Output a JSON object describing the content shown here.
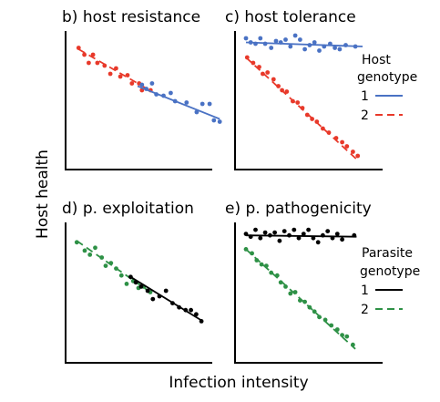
{
  "figure": {
    "xlabel": "Infection intensity",
    "ylabel": "Host health"
  },
  "colors": {
    "blue": "#4a72c4",
    "red": "#e8392a",
    "green": "#2e9146",
    "black": "#000000",
    "axis": "#000000"
  },
  "legends": {
    "host": {
      "title_line1": "Host",
      "title_line2": "genotype",
      "item1": "1",
      "item2": "2"
    },
    "parasite": {
      "title_line1": "Parasite",
      "title_line2": "genotype",
      "item1": "1",
      "item2": "2"
    }
  },
  "chart_data": [
    {
      "id": "b",
      "type": "scatter",
      "title": "b) host resistance",
      "xlim": [
        0,
        10
      ],
      "ylim": [
        0,
        10
      ],
      "series": [
        {
          "color_key": "red",
          "dashed": true,
          "points": [
            [
              0.4,
              8.9
            ],
            [
              0.8,
              8.4
            ],
            [
              1.1,
              7.8
            ],
            [
              1.4,
              8.4
            ],
            [
              1.7,
              7.8
            ],
            [
              2.2,
              7.6
            ],
            [
              2.6,
              7.0
            ],
            [
              3.0,
              7.4
            ],
            [
              3.3,
              6.8
            ],
            [
              3.8,
              6.9
            ],
            [
              4.1,
              6.3
            ],
            [
              4.6,
              6.3
            ],
            [
              4.8,
              5.8
            ],
            [
              5.4,
              5.8
            ]
          ],
          "fit": [
            [
              0.4,
              8.8
            ],
            [
              5.5,
              5.7
            ]
          ]
        },
        {
          "color_key": "blue",
          "dashed": false,
          "points": [
            [
              4.8,
              6.2
            ],
            [
              5.1,
              5.9
            ],
            [
              5.5,
              6.3
            ],
            [
              5.8,
              5.5
            ],
            [
              6.3,
              5.4
            ],
            [
              6.8,
              5.6
            ],
            [
              7.1,
              5.0
            ],
            [
              7.9,
              4.9
            ],
            [
              8.6,
              4.2
            ],
            [
              9.0,
              4.8
            ],
            [
              9.5,
              4.8
            ],
            [
              9.8,
              3.6
            ],
            [
              10.2,
              3.5
            ]
          ],
          "fit": [
            [
              4.5,
              6.1
            ],
            [
              10.2,
              3.7
            ]
          ]
        }
      ]
    },
    {
      "id": "c",
      "type": "scatter",
      "title": "c) host tolerance",
      "xlim": [
        0,
        10
      ],
      "ylim": [
        0,
        10
      ],
      "series": [
        {
          "name": "1",
          "color_key": "blue",
          "dashed": false,
          "points": [
            [
              0.3,
              9.6
            ],
            [
              0.7,
              9.3
            ],
            [
              1.1,
              9.2
            ],
            [
              1.5,
              9.6
            ],
            [
              1.9,
              9.2
            ],
            [
              2.4,
              8.9
            ],
            [
              2.8,
              9.4
            ],
            [
              3.2,
              9.3
            ],
            [
              3.6,
              9.5
            ],
            [
              4.0,
              9.0
            ],
            [
              4.4,
              9.8
            ],
            [
              4.8,
              9.5
            ],
            [
              5.2,
              8.8
            ],
            [
              5.6,
              9.1
            ],
            [
              6.0,
              9.3
            ],
            [
              6.4,
              8.7
            ],
            [
              6.8,
              9.0
            ],
            [
              7.3,
              9.2
            ],
            [
              7.7,
              8.9
            ],
            [
              8.1,
              8.8
            ],
            [
              8.6,
              9.1
            ],
            [
              9.4,
              9.0
            ]
          ],
          "fit": [
            [
              0.3,
              9.3
            ],
            [
              10.0,
              9.0
            ]
          ]
        },
        {
          "name": "2",
          "color_key": "red",
          "dashed": true,
          "points": [
            [
              0.4,
              8.2
            ],
            [
              0.9,
              7.8
            ],
            [
              1.4,
              7.5
            ],
            [
              1.7,
              7.0
            ],
            [
              2.1,
              7.1
            ],
            [
              2.6,
              6.6
            ],
            [
              3.0,
              6.1
            ],
            [
              3.3,
              5.8
            ],
            [
              3.7,
              5.7
            ],
            [
              4.2,
              5.0
            ],
            [
              4.6,
              4.9
            ],
            [
              5.0,
              4.5
            ],
            [
              5.4,
              4.0
            ],
            [
              5.8,
              3.7
            ],
            [
              6.2,
              3.5
            ],
            [
              6.7,
              3.0
            ],
            [
              7.2,
              2.7
            ],
            [
              7.8,
              2.3
            ],
            [
              8.3,
              2.0
            ],
            [
              8.7,
              1.7
            ],
            [
              9.2,
              1.3
            ],
            [
              9.6,
              1.0
            ]
          ],
          "fit": [
            [
              0.3,
              8.2
            ],
            [
              9.7,
              0.6
            ]
          ]
        }
      ]
    },
    {
      "id": "d",
      "type": "scatter",
      "title": "d) p. exploitation",
      "xlim": [
        0,
        10
      ],
      "ylim": [
        0,
        10
      ],
      "series": [
        {
          "color_key": "green",
          "dashed": true,
          "points": [
            [
              0.3,
              8.7
            ],
            [
              0.9,
              8.1
            ],
            [
              1.3,
              7.8
            ],
            [
              1.7,
              8.3
            ],
            [
              2.2,
              7.6
            ],
            [
              2.5,
              7.0
            ],
            [
              2.9,
              7.2
            ],
            [
              3.3,
              6.8
            ],
            [
              3.7,
              6.3
            ],
            [
              4.1,
              5.7
            ],
            [
              4.6,
              5.9
            ],
            [
              5.0,
              5.4
            ],
            [
              5.4,
              5.5
            ],
            [
              5.9,
              5.1
            ]
          ],
          "fit": [
            [
              0.3,
              8.8
            ],
            [
              5.9,
              5.1
            ]
          ]
        },
        {
          "color_key": "black",
          "dashed": false,
          "points": [
            [
              4.4,
              6.2
            ],
            [
              4.8,
              5.8
            ],
            [
              5.2,
              5.5
            ],
            [
              5.7,
              5.2
            ],
            [
              6.1,
              4.6
            ],
            [
              6.6,
              4.8
            ],
            [
              7.1,
              5.2
            ],
            [
              7.6,
              4.3
            ],
            [
              8.1,
              4.0
            ],
            [
              8.6,
              3.8
            ],
            [
              9.0,
              3.8
            ],
            [
              9.4,
              3.5
            ],
            [
              9.8,
              3.0
            ]
          ],
          "fit": [
            [
              4.4,
              6.2
            ],
            [
              9.9,
              3.0
            ]
          ]
        }
      ]
    },
    {
      "id": "e",
      "type": "scatter",
      "title": "e) p. pathogenicity",
      "xlim": [
        0,
        10
      ],
      "ylim": [
        0,
        10
      ],
      "series": [
        {
          "name": "1",
          "color_key": "black",
          "dashed": false,
          "points": [
            [
              0.3,
              9.3
            ],
            [
              0.7,
              9.1
            ],
            [
              1.1,
              9.6
            ],
            [
              1.5,
              9.0
            ],
            [
              1.9,
              9.4
            ],
            [
              2.3,
              9.2
            ],
            [
              2.7,
              9.4
            ],
            [
              3.1,
              8.8
            ],
            [
              3.5,
              9.5
            ],
            [
              3.9,
              9.2
            ],
            [
              4.3,
              9.6
            ],
            [
              4.7,
              9.0
            ],
            [
              5.1,
              9.3
            ],
            [
              5.5,
              9.6
            ],
            [
              5.9,
              9.0
            ],
            [
              6.3,
              8.7
            ],
            [
              6.7,
              9.2
            ],
            [
              7.1,
              9.5
            ],
            [
              7.5,
              9.0
            ],
            [
              7.9,
              9.3
            ],
            [
              8.3,
              8.9
            ],
            [
              9.3,
              9.2
            ]
          ],
          "fit": [
            [
              0.3,
              9.2
            ],
            [
              9.5,
              9.1
            ]
          ]
        },
        {
          "name": "2",
          "color_key": "green",
          "dashed": true,
          "points": [
            [
              0.3,
              8.2
            ],
            [
              0.8,
              7.9
            ],
            [
              1.2,
              7.4
            ],
            [
              1.6,
              7.1
            ],
            [
              2.0,
              7.0
            ],
            [
              2.4,
              6.5
            ],
            [
              2.9,
              6.3
            ],
            [
              3.2,
              5.8
            ],
            [
              3.6,
              5.5
            ],
            [
              4.0,
              5.0
            ],
            [
              4.4,
              5.1
            ],
            [
              4.8,
              4.5
            ],
            [
              5.2,
              4.4
            ],
            [
              5.6,
              4.0
            ],
            [
              6.0,
              3.7
            ],
            [
              6.4,
              3.3
            ],
            [
              6.9,
              3.1
            ],
            [
              7.4,
              2.7
            ],
            [
              7.9,
              2.4
            ],
            [
              8.3,
              2.0
            ],
            [
              8.7,
              1.9
            ],
            [
              9.2,
              1.3
            ]
          ],
          "fit": [
            [
              0.3,
              8.2
            ],
            [
              9.4,
              1.0
            ]
          ]
        }
      ]
    }
  ]
}
